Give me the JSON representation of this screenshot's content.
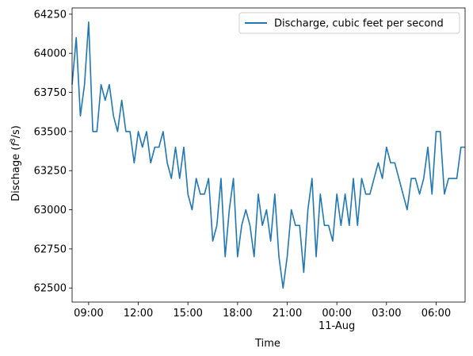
{
  "chart_data": {
    "type": "line",
    "xlabel": "Time",
    "ylabel": "Dischage ($f^3/s$)",
    "ylabel_parts": {
      "prefix": "Dischage (",
      "base": "f",
      "sup": "3",
      "suffix": "/s)"
    },
    "x_start": "2024-08-10 08:00",
    "x_end": "2024-08-11 07:45",
    "xlim": [
      "2024-08-10 08:00",
      "2024-08-11 07:45"
    ],
    "ylim": [
      62410,
      64290
    ],
    "grid": false,
    "legend_position": "upper-right",
    "x_ticks": [
      {
        "t": "2024-08-10 09:00",
        "label": "09:00",
        "sub": ""
      },
      {
        "t": "2024-08-10 12:00",
        "label": "12:00",
        "sub": ""
      },
      {
        "t": "2024-08-10 15:00",
        "label": "15:00",
        "sub": ""
      },
      {
        "t": "2024-08-10 18:00",
        "label": "18:00",
        "sub": ""
      },
      {
        "t": "2024-08-10 21:00",
        "label": "21:00",
        "sub": ""
      },
      {
        "t": "2024-08-11 00:00",
        "label": "00:00",
        "sub": "11-Aug"
      },
      {
        "t": "2024-08-11 03:00",
        "label": "03:00",
        "sub": ""
      },
      {
        "t": "2024-08-11 06:00",
        "label": "06:00",
        "sub": ""
      }
    ],
    "y_ticks": [
      62500,
      62750,
      63000,
      63250,
      63500,
      63750,
      64000,
      64250
    ],
    "series": [
      {
        "name": "Discharge, cubic feet per second",
        "color": "#1f77b4",
        "x": [
          "2024-08-10 08:00",
          "2024-08-10 08:15",
          "2024-08-10 08:30",
          "2024-08-10 08:45",
          "2024-08-10 09:00",
          "2024-08-10 09:15",
          "2024-08-10 09:30",
          "2024-08-10 09:45",
          "2024-08-10 10:00",
          "2024-08-10 10:15",
          "2024-08-10 10:30",
          "2024-08-10 10:45",
          "2024-08-10 11:00",
          "2024-08-10 11:15",
          "2024-08-10 11:30",
          "2024-08-10 11:45",
          "2024-08-10 12:00",
          "2024-08-10 12:15",
          "2024-08-10 12:30",
          "2024-08-10 12:45",
          "2024-08-10 13:00",
          "2024-08-10 13:15",
          "2024-08-10 13:30",
          "2024-08-10 13:45",
          "2024-08-10 14:00",
          "2024-08-10 14:15",
          "2024-08-10 14:30",
          "2024-08-10 14:45",
          "2024-08-10 15:00",
          "2024-08-10 15:15",
          "2024-08-10 15:30",
          "2024-08-10 15:45",
          "2024-08-10 16:00",
          "2024-08-10 16:15",
          "2024-08-10 16:30",
          "2024-08-10 16:45",
          "2024-08-10 17:00",
          "2024-08-10 17:15",
          "2024-08-10 17:30",
          "2024-08-10 17:45",
          "2024-08-10 18:00",
          "2024-08-10 18:15",
          "2024-08-10 18:30",
          "2024-08-10 18:45",
          "2024-08-10 19:00",
          "2024-08-10 19:15",
          "2024-08-10 19:30",
          "2024-08-10 19:45",
          "2024-08-10 20:00",
          "2024-08-10 20:15",
          "2024-08-10 20:30",
          "2024-08-10 20:45",
          "2024-08-10 21:00",
          "2024-08-10 21:15",
          "2024-08-10 21:30",
          "2024-08-10 21:45",
          "2024-08-10 22:00",
          "2024-08-10 22:15",
          "2024-08-10 22:30",
          "2024-08-10 22:45",
          "2024-08-10 23:00",
          "2024-08-10 23:15",
          "2024-08-10 23:30",
          "2024-08-10 23:45",
          "2024-08-11 00:00",
          "2024-08-11 00:15",
          "2024-08-11 00:30",
          "2024-08-11 00:45",
          "2024-08-11 01:00",
          "2024-08-11 01:15",
          "2024-08-11 01:30",
          "2024-08-11 01:45",
          "2024-08-11 02:00",
          "2024-08-11 02:15",
          "2024-08-11 02:30",
          "2024-08-11 02:45",
          "2024-08-11 03:00",
          "2024-08-11 03:15",
          "2024-08-11 03:30",
          "2024-08-11 03:45",
          "2024-08-11 04:00",
          "2024-08-11 04:15",
          "2024-08-11 04:30",
          "2024-08-11 04:45",
          "2024-08-11 05:00",
          "2024-08-11 05:15",
          "2024-08-11 05:30",
          "2024-08-11 05:45",
          "2024-08-11 06:00",
          "2024-08-11 06:15",
          "2024-08-11 06:30",
          "2024-08-11 06:45",
          "2024-08-11 07:00",
          "2024-08-11 07:15",
          "2024-08-11 07:30",
          "2024-08-11 07:45"
        ],
        "values": [
          63800,
          64100,
          63600,
          63800,
          64200,
          63500,
          63500,
          63800,
          63700,
          63800,
          63600,
          63500,
          63700,
          63500,
          63500,
          63300,
          63500,
          63400,
          63500,
          63300,
          63400,
          63400,
          63500,
          63300,
          63200,
          63400,
          63200,
          63400,
          63100,
          63000,
          63200,
          63100,
          63100,
          63200,
          62800,
          62900,
          63200,
          62700,
          63000,
          63200,
          62700,
          62900,
          63000,
          62900,
          62700,
          63100,
          62900,
          63000,
          62800,
          63100,
          62700,
          62500,
          62700,
          63000,
          62900,
          62900,
          62600,
          63000,
          63200,
          62700,
          63100,
          62900,
          62900,
          62800,
          63100,
          62900,
          63100,
          62900,
          63200,
          62900,
          63200,
          63100,
          63100,
          63200,
          63300,
          63200,
          63400,
          63300,
          63300,
          63200,
          63100,
          63000,
          63200,
          63200,
          63100,
          63200,
          63400,
          63100,
          63500,
          63500,
          63100,
          63200,
          63200,
          63200,
          63400,
          63400
        ]
      }
    ]
  }
}
